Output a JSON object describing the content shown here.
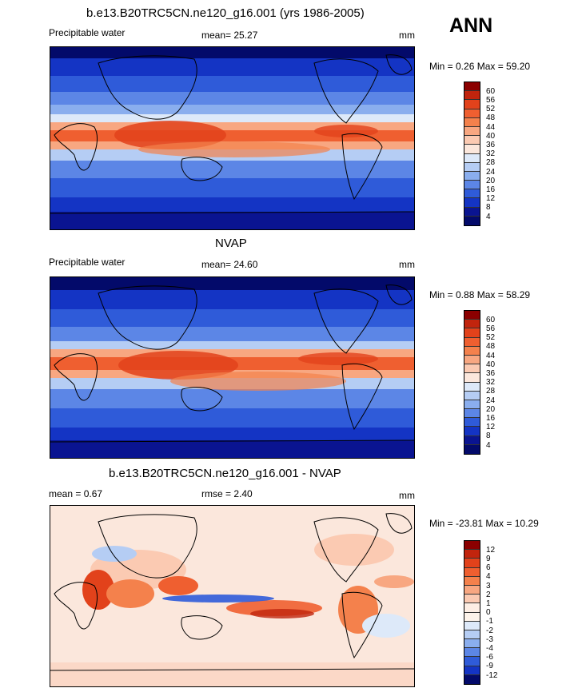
{
  "season": "ANN",
  "panels": [
    {
      "title": "b.e13.B20TRC5CN.ne120_g16.001 (yrs 1986-2005)",
      "left_label": "Precipitable water",
      "mid_label": "mean=  25.27",
      "units": "mm",
      "minmax": "Min =   0.26 Max =  59.20",
      "colorbar_ticks": [
        "60",
        "56",
        "52",
        "48",
        "44",
        "40",
        "36",
        "32",
        "28",
        "24",
        "20",
        "16",
        "12",
        "8",
        "4"
      ]
    },
    {
      "title": "NVAP",
      "left_label": "Precipitable water",
      "mid_label": "mean=  24.60",
      "units": "mm",
      "minmax": "Min =   0.88 Max =  58.29",
      "colorbar_ticks": [
        "60",
        "56",
        "52",
        "48",
        "44",
        "40",
        "36",
        "32",
        "28",
        "24",
        "20",
        "16",
        "12",
        "8",
        "4"
      ]
    },
    {
      "title": "b.e13.B20TRC5CN.ne120_g16.001 - NVAP",
      "left_label": "mean =   0.67",
      "mid_label": "rmse =   2.40",
      "units": "mm",
      "minmax": "Min = -23.81 Max =  10.29",
      "colorbar_ticks": [
        "12",
        "9",
        "6",
        "4",
        "3",
        "2",
        "1",
        "0",
        "-1",
        "-2",
        "-3",
        "-4",
        "-6",
        "-9",
        "-12"
      ]
    }
  ],
  "colors": {
    "abs_scale": [
      "#8b0000",
      "#c1240d",
      "#e2421b",
      "#ef5f30",
      "#f4814c",
      "#f8a781",
      "#fbcab2",
      "#fbe7dc",
      "#dde9f9",
      "#b5cdf4",
      "#8aaeee",
      "#5c86e6",
      "#2f5bd9",
      "#1434c4",
      "#0a1491",
      "#030a6a"
    ],
    "diff_scale": [
      "#8b0000",
      "#c1240d",
      "#e2421b",
      "#ef5f30",
      "#f4814c",
      "#f8a781",
      "#fbcab2",
      "#fdeee4",
      "#fdf3ea",
      "#dde9f9",
      "#b5cdf4",
      "#8aaeee",
      "#5c86e6",
      "#2f5bd9",
      "#1434c4",
      "#030a6a"
    ],
    "land_outline": "#000000"
  }
}
